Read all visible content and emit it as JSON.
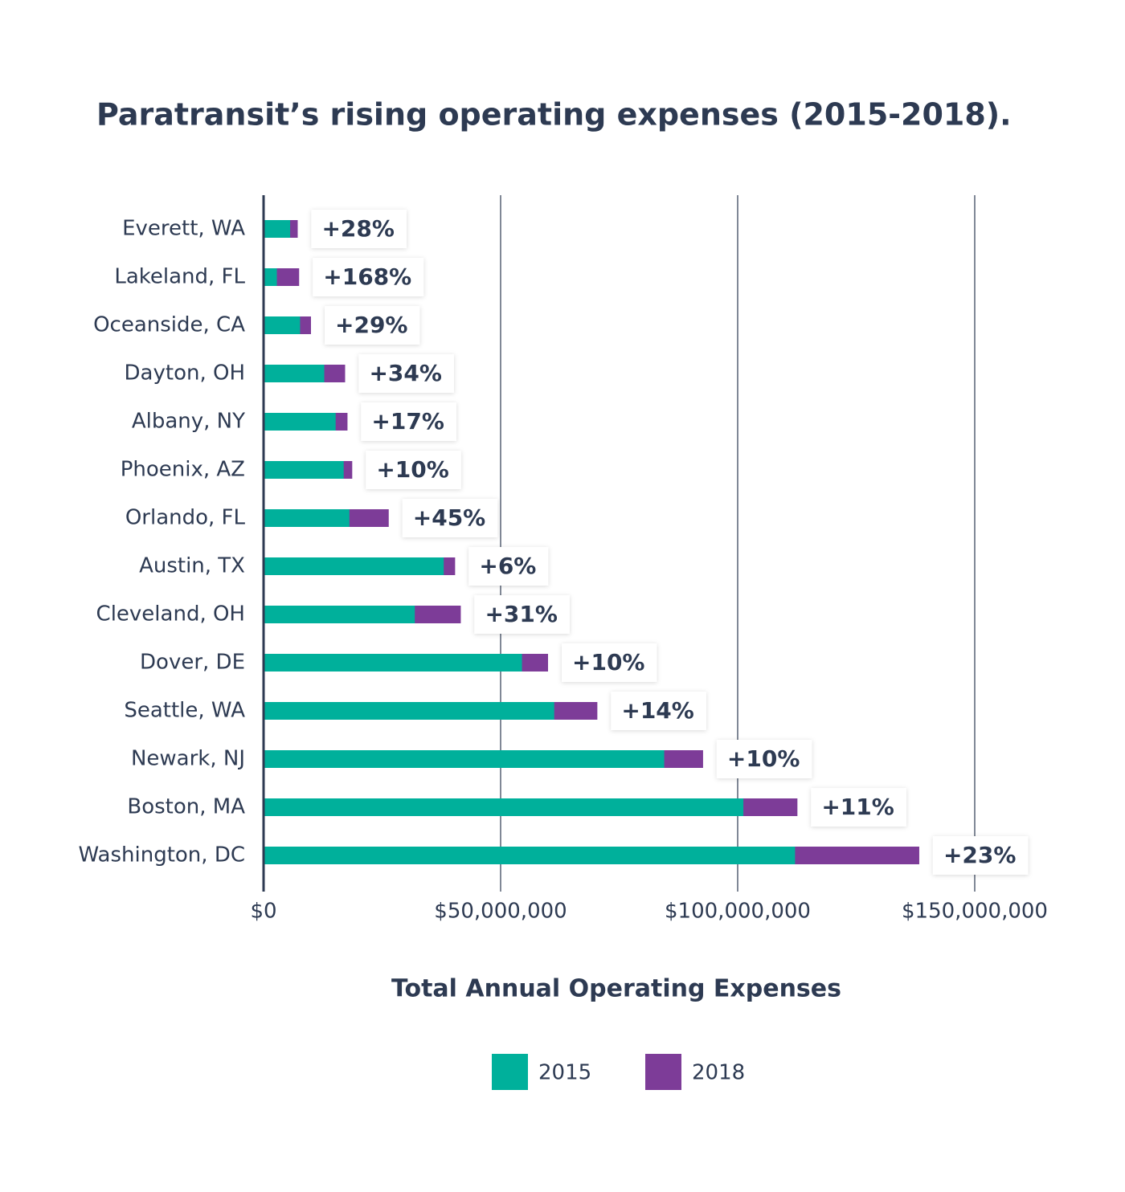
{
  "chart_data": {
    "type": "bar",
    "orientation": "horizontal",
    "title": "Paratransit’s rising operating expenses (2015-2018).",
    "x_label": "Total Annual Operating Expenses",
    "categories": [
      "Everett, WA",
      "Lakeland, FL",
      "Oceanside, CA",
      "Dayton, OH",
      "Albany, NY",
      "Phoenix, AZ",
      "Orlando, FL",
      "Austin, TX",
      "Cleveland, OH",
      "Dover, DE",
      "Seattle, WA",
      "Newark, NJ",
      "Boston, MA",
      "Washington, DC"
    ],
    "series": [
      {
        "name": "2015",
        "color": "#00b09b",
        "values": [
          5600000,
          2800000,
          7700000,
          12800000,
          15200000,
          16900000,
          18100000,
          38000000,
          31900000,
          54500000,
          61300000,
          84500000,
          101200000,
          112100000
        ]
      },
      {
        "name": "2018",
        "color": "#7d3c98",
        "values": [
          7200000,
          7500000,
          10000000,
          17200000,
          17700000,
          18700000,
          26400000,
          40400000,
          41600000,
          60000000,
          70400000,
          92700000,
          112600000,
          138300000
        ]
      }
    ],
    "annotations": [
      "+28%",
      "+168%",
      "+29%",
      "+34%",
      "+17%",
      "+10%",
      "+45%",
      "+6%",
      "+31%",
      "+10%",
      "+14%",
      "+10%",
      "+11%",
      "+23%"
    ],
    "xlim": [
      0,
      160000000
    ],
    "xticks": [
      {
        "value": 0,
        "label": "$0"
      },
      {
        "value": 50000000,
        "label": "$50,000,000"
      },
      {
        "value": 100000000,
        "label": "$100,000,000"
      },
      {
        "value": 150000000,
        "label": "$150,000,000"
      }
    ],
    "grid": true,
    "legend": "bottom"
  }
}
